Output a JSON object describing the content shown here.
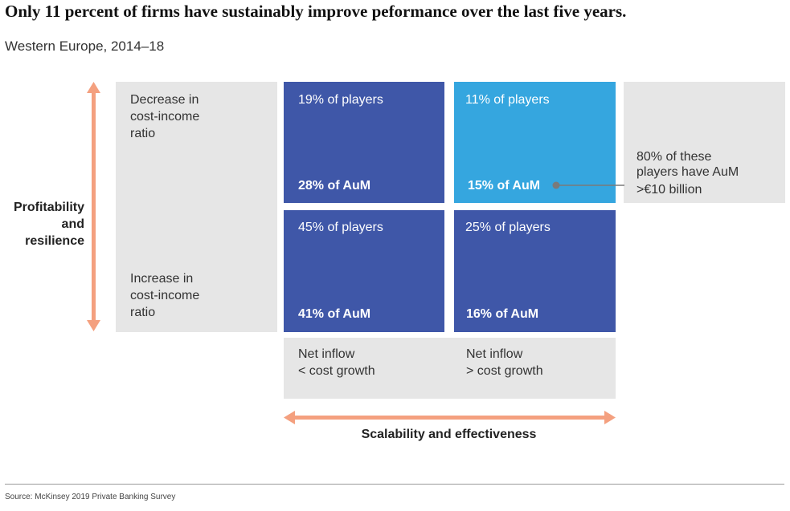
{
  "title": "Only 11 percent of firms have sustainably improve peformance over the last five years.",
  "subtitle": "Western Europe, 2014–18",
  "y_axis": {
    "label_lines": [
      "Profitability",
      "and",
      "resilience"
    ],
    "top_label_lines": [
      "Decrease in",
      "cost-income",
      "ratio"
    ],
    "bottom_label_lines": [
      "Increase in",
      "cost-income",
      "ratio"
    ]
  },
  "x_axis": {
    "label": "Scalability and effectiveness",
    "left_label_lines": [
      "Net inflow",
      "< cost growth"
    ],
    "right_label_lines": [
      "Net inflow",
      "> cost growth"
    ]
  },
  "quadrants": {
    "top_left": {
      "players": "19% of players",
      "aum": "28% of AuM",
      "color": "#3f57a8"
    },
    "top_right": {
      "players": "11% of players",
      "aum": "15% of AuM",
      "color": "#35a6df"
    },
    "bottom_left": {
      "players": "45% of players",
      "aum": "41% of AuM",
      "color": "#3f57a8"
    },
    "bottom_right": {
      "players": "25% of players",
      "aum": "16% of AuM",
      "color": "#3f57a8"
    }
  },
  "callout": {
    "lines": [
      "80% of these",
      "players have AuM",
      ">€10 billion"
    ]
  },
  "source": "Source: McKinsey 2019 Private Banking Survey",
  "colors": {
    "arrow": "#f4a07f",
    "grey_panel": "#e6e6e6",
    "connector": "#7a7a7a"
  }
}
